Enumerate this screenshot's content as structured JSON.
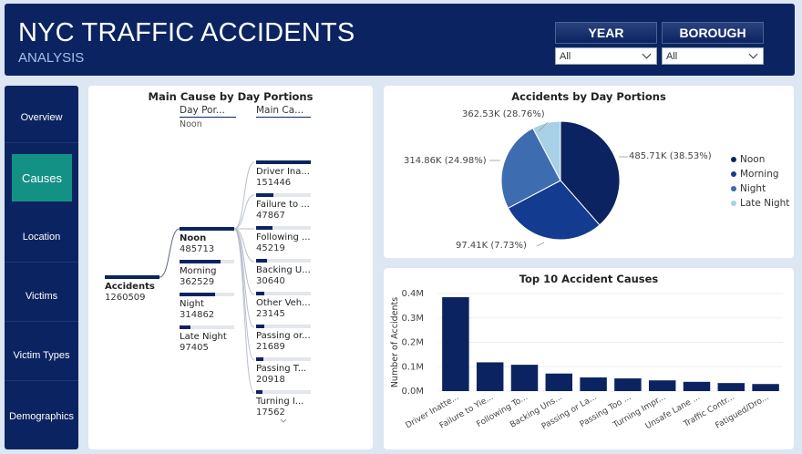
{
  "header": {
    "title": "NYC TRAFFIC ACCIDENTS",
    "subtitle": "ANALYSIS",
    "year_label": "YEAR",
    "year_value": "All",
    "borough_label": "BOROUGH",
    "borough_value": "All"
  },
  "sidebar": {
    "items": [
      {
        "label": "Overview"
      },
      {
        "label": "Causes"
      },
      {
        "label": "Location"
      },
      {
        "label": "Victims"
      },
      {
        "label": "Victim Types"
      },
      {
        "label": "Demographics"
      }
    ],
    "active": "Causes"
  },
  "tree": {
    "title": "Main Cause by Day Portions",
    "col1_head": "Day Por...",
    "col1_filter": "Noon",
    "col2_head": "Main Ca...",
    "root": {
      "label": "Accidents",
      "value": "1260509"
    },
    "level1": [
      {
        "label": "Noon",
        "value": "485713",
        "frac": 1.0
      },
      {
        "label": "Morning",
        "value": "362529",
        "frac": 0.746
      },
      {
        "label": "Night",
        "value": "314862",
        "frac": 0.648
      },
      {
        "label": "Late Night",
        "value": "97405",
        "frac": 0.2
      }
    ],
    "level2": [
      {
        "label": "Driver Ina...",
        "value": "151446",
        "frac": 1.0
      },
      {
        "label": "Failure to ...",
        "value": "47867",
        "frac": 0.316
      },
      {
        "label": "Following ...",
        "value": "45219",
        "frac": 0.299
      },
      {
        "label": "Backing U...",
        "value": "30640",
        "frac": 0.202
      },
      {
        "label": "Other Veh...",
        "value": "23145",
        "frac": 0.153
      },
      {
        "label": "Passing or...",
        "value": "21689",
        "frac": 0.143
      },
      {
        "label": "Passing T...",
        "value": "20918",
        "frac": 0.138
      },
      {
        "label": "Turning I...",
        "value": "17562",
        "frac": 0.116
      }
    ]
  },
  "pie": {
    "title": "Accidents by Day Portions",
    "slices": [
      {
        "name": "Noon",
        "label": "485.71K (38.53%)",
        "value": 38.53,
        "color": "#0b2461"
      },
      {
        "name": "Morning",
        "label": "362.53K (28.76%)",
        "value": 28.76,
        "color": "#133b8f"
      },
      {
        "name": "Night",
        "label": "314.86K (24.98%)",
        "value": 24.98,
        "color": "#3e6cb0"
      },
      {
        "name": "Late Night",
        "label": "97.41K (7.73%)",
        "value": 7.73,
        "color": "#a8d1e7"
      }
    ]
  },
  "chart_data": {
    "type": "bar",
    "title": "Top 10 Accident Causes",
    "ylabel": "Number of Accidents",
    "xlabel": "",
    "ylim": [
      0,
      400000
    ],
    "yticks": [
      "0.0M",
      "0.1M",
      "0.2M",
      "0.3M",
      "0.4M"
    ],
    "categories": [
      "Driver Inatte...",
      "Failure to Yie...",
      "Following To...",
      "Backing Uns...",
      "Passing or La...",
      "Passing Too ...",
      "Turning Impr...",
      "Unsafe Lane ...",
      "Traffic Contr...",
      "Fatigued/Dro..."
    ],
    "values": [
      385000,
      118000,
      108000,
      72000,
      56000,
      52000,
      44000,
      38000,
      33000,
      29000
    ],
    "color": "#0b2461"
  }
}
